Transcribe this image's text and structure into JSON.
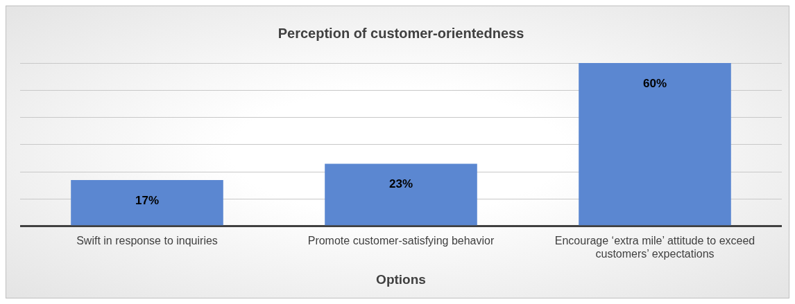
{
  "chart_data": {
    "type": "bar",
    "title": "Perception of customer-orientedness",
    "xlabel": "Options",
    "categories": [
      "Swift in response to inquiries",
      "Promote customer-satisfying behavior",
      "Encourage ‘extra mile’ attitude to exceed customers’ expectations"
    ],
    "values": [
      17,
      23,
      60
    ],
    "color": "#5b87d1",
    "value_labels": [
      "17%",
      "23%",
      "60%"
    ],
    "grid": "y",
    "legend": false,
    "tick_labels": "x"
  }
}
